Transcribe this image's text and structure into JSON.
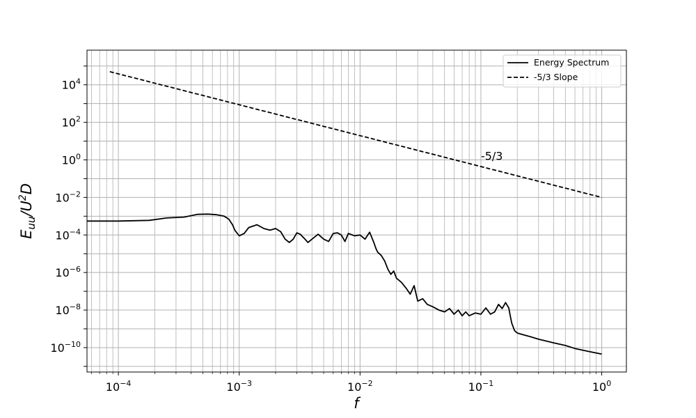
{
  "chart_data": {
    "type": "line",
    "title": "",
    "xlabel": "f",
    "ylabel": "E_uu/U^2D",
    "xscale": "log",
    "yscale": "log",
    "xlim": [
      5.5e-05,
      1.6
    ],
    "ylim": [
      5e-12,
      700000.0
    ],
    "grid": "on (major and minor)",
    "legend_position": "top-right",
    "x_ticks": [
      "10^-4",
      "10^-3",
      "10^-2",
      "10^-1",
      "10^0"
    ],
    "y_ticks": [
      "10^-10",
      "10^-8",
      "10^-6",
      "10^-4",
      "10^-2",
      "10^0",
      "10^2",
      "10^4"
    ],
    "annotation": {
      "text": "-5/3",
      "x": 0.1,
      "y": 1.0
    },
    "series": [
      {
        "name": "Energy Spectrum",
        "style": "solid",
        "color": "#000000",
        "x": [
          5.5e-05,
          0.0001,
          0.00018,
          0.00025,
          0.00035,
          0.00045,
          0.00055,
          0.00065,
          0.00075,
          0.00082,
          0.00088,
          0.00092,
          0.001,
          0.0011,
          0.0012,
          0.0014,
          0.0016,
          0.0018,
          0.002,
          0.0022,
          0.0024,
          0.0026,
          0.0028,
          0.003,
          0.0032,
          0.0035,
          0.0037,
          0.004,
          0.0045,
          0.005,
          0.0055,
          0.006,
          0.0065,
          0.007,
          0.0075,
          0.008,
          0.009,
          0.01,
          0.011,
          0.012,
          0.013,
          0.0135,
          0.014,
          0.015,
          0.016,
          0.017,
          0.018,
          0.019,
          0.02,
          0.022,
          0.024,
          0.026,
          0.028,
          0.03,
          0.033,
          0.036,
          0.04,
          0.045,
          0.05,
          0.055,
          0.06,
          0.065,
          0.07,
          0.075,
          0.08,
          0.09,
          0.1,
          0.11,
          0.12,
          0.13,
          0.14,
          0.15,
          0.16,
          0.17,
          0.175,
          0.18,
          0.19,
          0.2,
          0.22,
          0.25,
          0.3,
          0.4,
          0.5,
          0.6,
          0.8,
          1.0
        ],
        "y": [
          0.00055,
          0.00055,
          0.0006,
          0.0008,
          0.0009,
          0.00125,
          0.0013,
          0.0012,
          0.001,
          0.0007,
          0.00035,
          0.00018,
          9e-05,
          0.00012,
          0.00025,
          0.00035,
          0.00022,
          0.00018,
          0.00022,
          0.00015,
          6e-05,
          4e-05,
          6e-05,
          0.00013,
          0.00011,
          6e-05,
          4e-05,
          6e-05,
          0.00011,
          6e-05,
          4.5e-05,
          0.00012,
          0.00013,
          0.0001,
          4.5e-05,
          0.00012,
          9e-05,
          0.0001,
          6e-05,
          0.00014,
          4e-05,
          2e-05,
          1.2e-05,
          8e-06,
          4e-06,
          1.5e-06,
          8e-07,
          1.2e-06,
          5e-07,
          3e-07,
          1.5e-07,
          7e-08,
          2e-07,
          3e-08,
          4e-08,
          2e-08,
          1.5e-08,
          1e-08,
          8e-09,
          1.2e-08,
          6e-09,
          1e-08,
          5e-09,
          8e-09,
          5e-09,
          7e-09,
          6e-09,
          1.3e-08,
          6e-09,
          8e-09,
          2e-08,
          1.2e-08,
          2.5e-08,
          1.3e-08,
          5e-09,
          2e-09,
          8e-10,
          6e-10,
          5e-10,
          4e-10,
          2.8e-10,
          1.8e-10,
          1.3e-10,
          9e-11,
          6e-11,
          4.5e-11
        ]
      },
      {
        "name": "-5/3 Slope",
        "style": "dashed",
        "color": "#000000",
        "x": [
          8.5e-05,
          1.0
        ],
        "y": [
          50000,
          0.01
        ]
      }
    ]
  }
}
